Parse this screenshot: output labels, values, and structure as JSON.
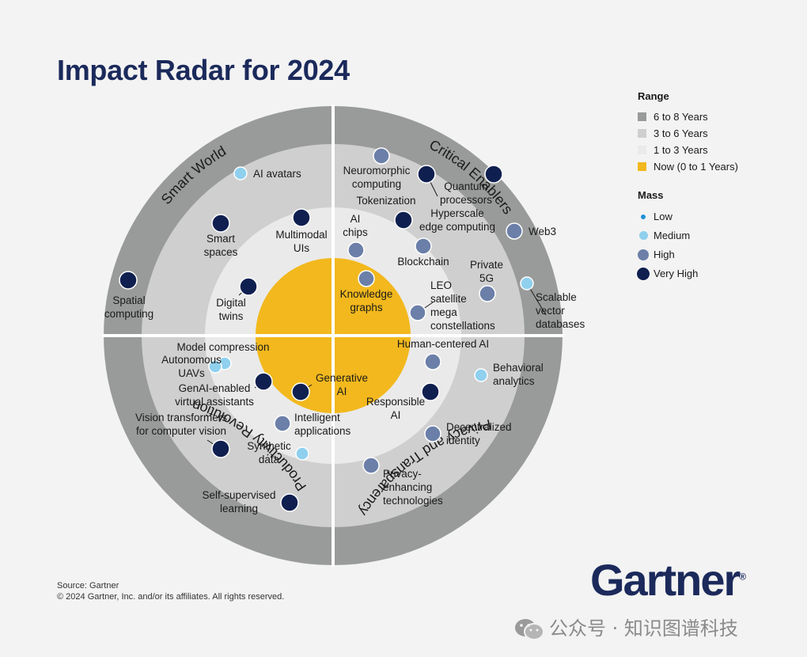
{
  "title": "Impact Radar for 2024",
  "colors": {
    "ring_6_8": "#999b9a",
    "ring_3_6": "#cfcfcf",
    "ring_1_3": "#eaeaea",
    "ring_now": "#f2b81d",
    "mass_low": "#1e90d6",
    "mass_medium": "#8fd0ee",
    "mass_high": "#6b7fa8",
    "mass_very_high": "#0f1f4f",
    "text_dark": "#1b2a5b"
  },
  "legend": {
    "range_title": "Range",
    "range_items": [
      "6 to 8 Years",
      "3 to 6 Years",
      "1 to 3 Years",
      "Now (0 to 1 Years)"
    ],
    "mass_title": "Mass",
    "mass_items": [
      "Low",
      "Medium",
      "High",
      "Very High"
    ]
  },
  "source": "Source: Gartner",
  "copyright": "© 2024 Gartner, Inc. and/or its affiliates. All rights reserved.",
  "brand": "Gartner",
  "watermark": "公众号 · 知识图谱科技",
  "chart_data": {
    "type": "radar",
    "rings": [
      "Now (0 to 1 Years)",
      "1 to 3 Years",
      "3 to 6 Years",
      "6 to 8 Years"
    ],
    "quadrants": [
      "Smart World",
      "Critical Enablers",
      "Privacy and Transparency",
      "Productivity Revolution"
    ],
    "technologies": [
      {
        "name": "AI avatars",
        "quadrant": "Smart World",
        "range": "3 to 6 Years",
        "mass": "Medium"
      },
      {
        "name": "Smart spaces",
        "quadrant": "Smart World",
        "range": "3 to 6 Years",
        "mass": "Very High"
      },
      {
        "name": "Spatial computing",
        "quadrant": "Smart World",
        "range": "6 to 8 Years",
        "mass": "Very High"
      },
      {
        "name": "Multimodal UIs",
        "quadrant": "Smart World",
        "range": "1 to 3 Years",
        "mass": "Very High"
      },
      {
        "name": "Digital twins",
        "quadrant": "Smart World",
        "range": "1 to 3 Years",
        "mass": "Very High"
      },
      {
        "name": "Neuromorphic computing",
        "quadrant": "Critical Enablers",
        "range": "3 to 6 Years",
        "mass": "High"
      },
      {
        "name": "Quantum processors",
        "quadrant": "Critical Enablers",
        "range": "6 to 8 Years",
        "mass": "Very High"
      },
      {
        "name": "Tokenization",
        "quadrant": "Critical Enablers",
        "range": "3 to 6 Years",
        "mass": "Very High"
      },
      {
        "name": "Hyperscale edge computing",
        "quadrant": "Critical Enablers",
        "range": "1 to 3 Years",
        "mass": "Very High"
      },
      {
        "name": "Web3",
        "quadrant": "Critical Enablers",
        "range": "6 to 8 Years",
        "mass": "High"
      },
      {
        "name": "AI chips",
        "quadrant": "Critical Enablers",
        "range": "1 to 3 Years",
        "mass": "High"
      },
      {
        "name": "Blockchain",
        "quadrant": "Critical Enablers",
        "range": "3 to 6 Years",
        "mass": "High"
      },
      {
        "name": "Private 5G",
        "quadrant": "Critical Enablers",
        "range": "3 to 6 Years",
        "mass": "High"
      },
      {
        "name": "Scalable vector databases",
        "quadrant": "Critical Enablers",
        "range": "6 to 8 Years",
        "mass": "Medium"
      },
      {
        "name": "Knowledge graphs",
        "quadrant": "Critical Enablers",
        "range": "Now (0 to 1 Years)",
        "mass": "High"
      },
      {
        "name": "LEO satellite mega constellations",
        "quadrant": "Critical Enablers",
        "range": "1 to 3 Years",
        "mass": "High"
      },
      {
        "name": "Human-centered AI",
        "quadrant": "Privacy and Transparency",
        "range": "1 to 3 Years",
        "mass": "High"
      },
      {
        "name": "Behavioral analytics",
        "quadrant": "Privacy and Transparency",
        "range": "3 to 6 Years",
        "mass": "Medium"
      },
      {
        "name": "Responsible AI",
        "quadrant": "Privacy and Transparency",
        "range": "1 to 3 Years",
        "mass": "Very High"
      },
      {
        "name": "Decentralized identity",
        "quadrant": "Privacy and Transparency",
        "range": "3 to 6 Years",
        "mass": "High"
      },
      {
        "name": "Privacy-enhancing technologies",
        "quadrant": "Privacy and Transparency",
        "range": "3 to 6 Years",
        "mass": "High"
      },
      {
        "name": "Model compression",
        "quadrant": "Productivity Revolution",
        "range": "3 to 6 Years",
        "mass": "Medium"
      },
      {
        "name": "Autonomous UAVs",
        "quadrant": "Productivity Revolution",
        "range": "3 to 6 Years",
        "mass": "Medium"
      },
      {
        "name": "GenAI-enabled virtual assistants",
        "quadrant": "Productivity Revolution",
        "range": "1 to 3 Years",
        "mass": "Very High"
      },
      {
        "name": "Generative AI",
        "quadrant": "Productivity Revolution",
        "range": "Now (0 to 1 Years)",
        "mass": "Very High"
      },
      {
        "name": "Intelligent applications",
        "quadrant": "Productivity Revolution",
        "range": "1 to 3 Years",
        "mass": "High"
      },
      {
        "name": "Vision transformers for computer vision",
        "quadrant": "Productivity Revolution",
        "range": "3 to 6 Years",
        "mass": "Very High"
      },
      {
        "name": "Synthetic data",
        "quadrant": "Productivity Revolution",
        "range": "1 to 3 Years",
        "mass": "Medium"
      },
      {
        "name": "Self-supervised learning",
        "quadrant": "Productivity Revolution",
        "range": "3 to 6 Years",
        "mass": "Very High"
      }
    ]
  }
}
